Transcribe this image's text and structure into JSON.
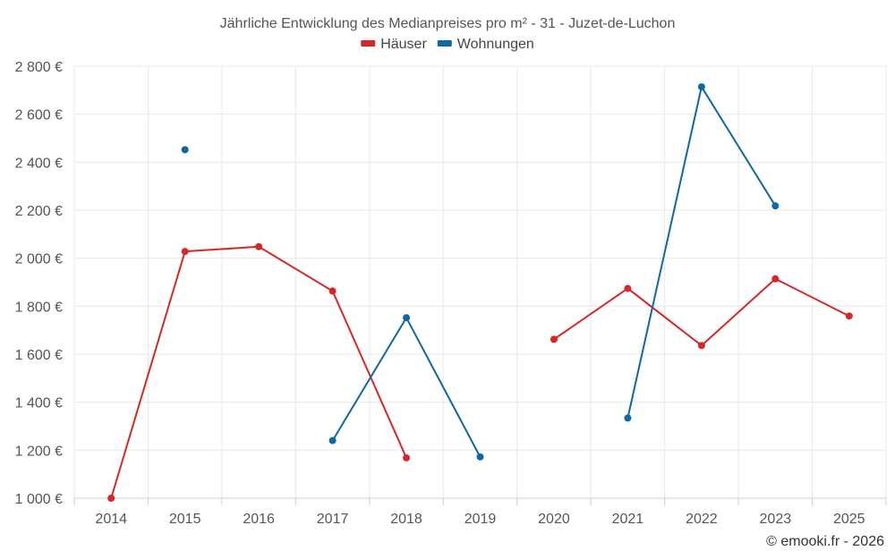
{
  "chart_data": {
    "type": "line",
    "title": "Jährliche Entwicklung des Medianpreises pro m² - 31 - Juzet-de-Luchon",
    "xlabel": "",
    "ylabel": "",
    "categories": [
      "2014",
      "2015",
      "2016",
      "2017",
      "2018",
      "2019",
      "2020",
      "2021",
      "2022",
      "2023",
      "2025"
    ],
    "ylim": [
      1000,
      2800
    ],
    "yticks": [
      1000,
      1200,
      1400,
      1600,
      1800,
      2000,
      2200,
      2400,
      2600,
      2800
    ],
    "y_tick_labels": [
      "1 000 €",
      "1 200 €",
      "1 400 €",
      "1 600 €",
      "1 800 €",
      "2 000 €",
      "2 200 €",
      "2 400 €",
      "2 600 €",
      "2 800 €"
    ],
    "grid": true,
    "legend_position": "top-center",
    "series": [
      {
        "name": "Häuser",
        "color": "#d62728",
        "values": [
          1000,
          2028,
          2048,
          1863,
          1168,
          null,
          1662,
          1874,
          1636,
          1914,
          1759
        ]
      },
      {
        "name": "Wohnungen",
        "color": "#1068a3",
        "values": [
          null,
          2452,
          null,
          1240,
          1752,
          1172,
          null,
          1334,
          2714,
          2218,
          null
        ]
      }
    ]
  },
  "credit": "© emooki.fr - 2026"
}
